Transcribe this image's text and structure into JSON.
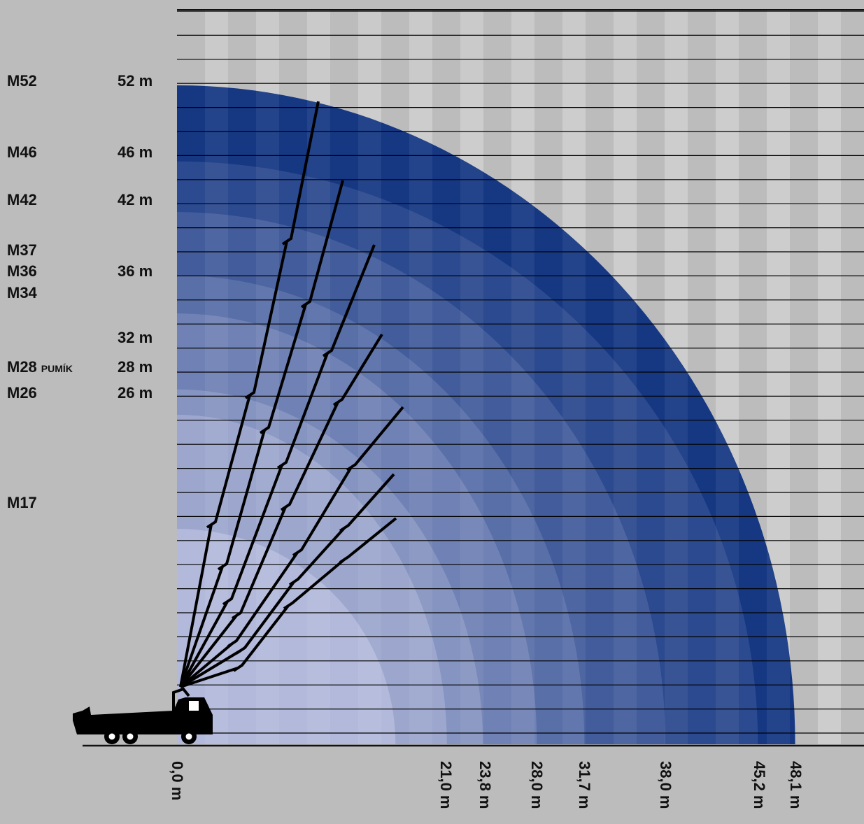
{
  "diagram": {
    "models": [
      {
        "label": "M52",
        "reach_m": 48.1,
        "height_m": 52
      },
      {
        "label": "M46",
        "reach_m": 45.2,
        "height_m": 46
      },
      {
        "label": "M42",
        "reach_m": 38.0,
        "height_m": 42
      },
      {
        "label": "M37",
        "reach_m": 31.7,
        "height_m": 37
      },
      {
        "label": "M36",
        "reach_m": 31.7,
        "height_m": 36
      },
      {
        "label": "M34",
        "reach_m": 28.0,
        "height_m": 34
      },
      {
        "label": "M28",
        "suffix": "PUMÍK",
        "reach_m": 23.8,
        "height_m": 28
      },
      {
        "label": "M26",
        "reach_m": 21.0,
        "height_m": 26
      },
      {
        "label": "M17",
        "reach_m": 17.0,
        "height_m": 17
      }
    ],
    "height_labels": [
      "52 m",
      "46 m",
      "42 m",
      "36 m",
      "32 m",
      "28 m",
      "26 m"
    ],
    "reach_labels": [
      "0,0 m",
      "21,0 m",
      "23,8 m",
      "28,0 m",
      "31,7 m",
      "38,0 m",
      "45,2 m",
      "48,1 m"
    ],
    "colors": {
      "ring_outer": "#163883",
      "ring_inner": "#b3b9da",
      "stripe": "#8f8f8f",
      "line": "#000000"
    },
    "icons": {
      "truck": "truck-icon"
    }
  }
}
